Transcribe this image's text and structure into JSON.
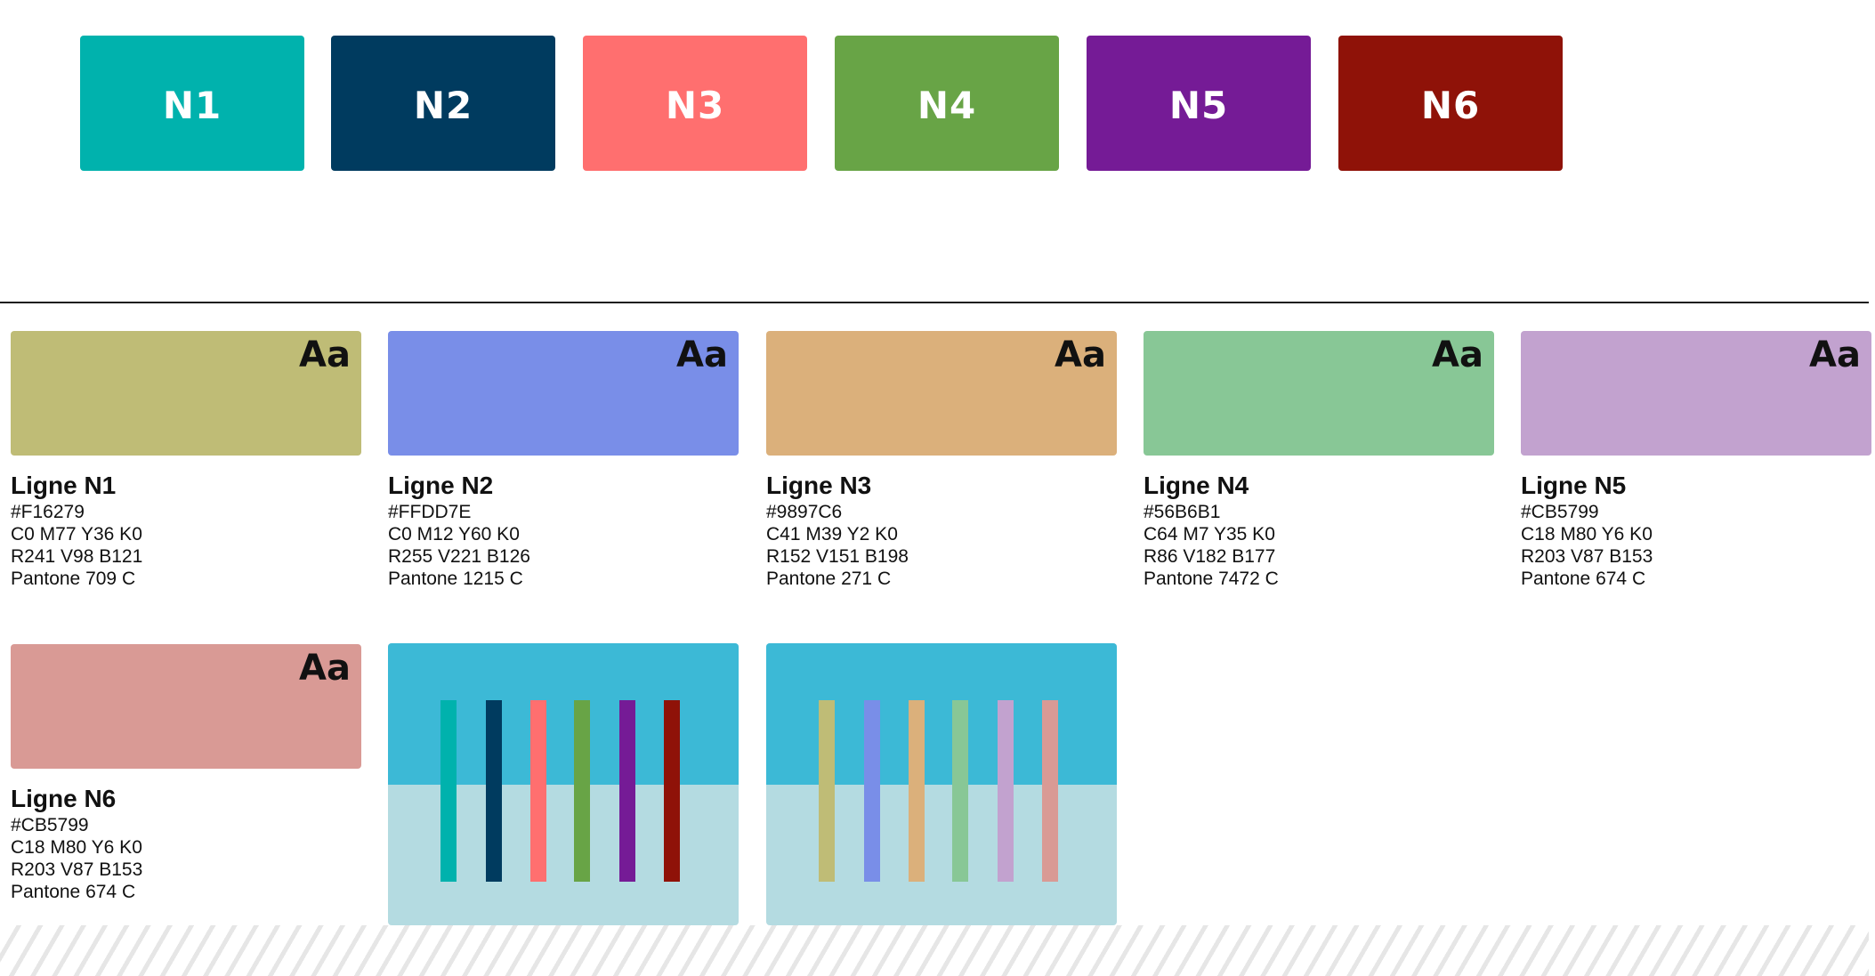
{
  "top_tiles": [
    {
      "label": "N1",
      "color": "#00b2ad"
    },
    {
      "label": "N2",
      "color": "#003b5f"
    },
    {
      "label": "N3",
      "color": "#ff6f6f"
    },
    {
      "label": "N4",
      "color": "#68a446"
    },
    {
      "label": "N5",
      "color": "#751b96"
    },
    {
      "label": "N6",
      "color": "#8f1208"
    }
  ],
  "swatches": [
    {
      "aa": "Aa",
      "color": "#bfbc76",
      "title": "Ligne N1",
      "hex": "#F16279",
      "cmyk": "C0 M77 Y36 K0",
      "rgb": "R241 V98 B121",
      "pantone": "Pantone 709 C"
    },
    {
      "aa": "Aa",
      "color": "#798ee8",
      "title": "Ligne N2",
      "hex": "#FFDD7E",
      "cmyk": "C0 M12 Y60 K0",
      "rgb": "R255 V221 B126",
      "pantone": "Pantone 1215 C"
    },
    {
      "aa": "Aa",
      "color": "#dbb07b",
      "title": "Ligne N3",
      "hex": "#9897C6",
      "cmyk": "C41 M39 Y2 K0",
      "rgb": "R152 V151 B198",
      "pantone": "Pantone 271 C"
    },
    {
      "aa": "Aa",
      "color": "#88c796",
      "title": "Ligne N4",
      "hex": "#56B6B1",
      "cmyk": "C64 M7 Y35 K0",
      "rgb": "R86 V182 B177",
      "pantone": "Pantone 7472  C"
    },
    {
      "aa": "Aa",
      "color": "#c2a2cf",
      "title": "Ligne N5",
      "hex": "#CB5799",
      "cmyk": "C18 M80 Y6 K0",
      "rgb": "R203 V87 B153",
      "pantone": "Pantone 674 C"
    },
    {
      "aa": "Aa",
      "color": "#d99a95",
      "title": "Ligne N6",
      "hex": "#CB5799",
      "cmyk": "C18 M80 Y6 K0",
      "rgb": "R203 V87 B153",
      "pantone": "Pantone 674 C"
    }
  ],
  "strip_panels": [
    {
      "bars": [
        "#00b2ad",
        "#003b5f",
        "#ff6f6f",
        "#68a446",
        "#751b96",
        "#8f1208"
      ]
    },
    {
      "bars": [
        "#bfbc76",
        "#798ee8",
        "#dbb07b",
        "#88c796",
        "#c2a2cf",
        "#d99a95"
      ]
    }
  ],
  "colors": {
    "divider": "#1a1a1a",
    "panel_top": "#3cb9d6",
    "panel_bottom": "#b4dbe1",
    "hatch": "#e6e6e6"
  }
}
